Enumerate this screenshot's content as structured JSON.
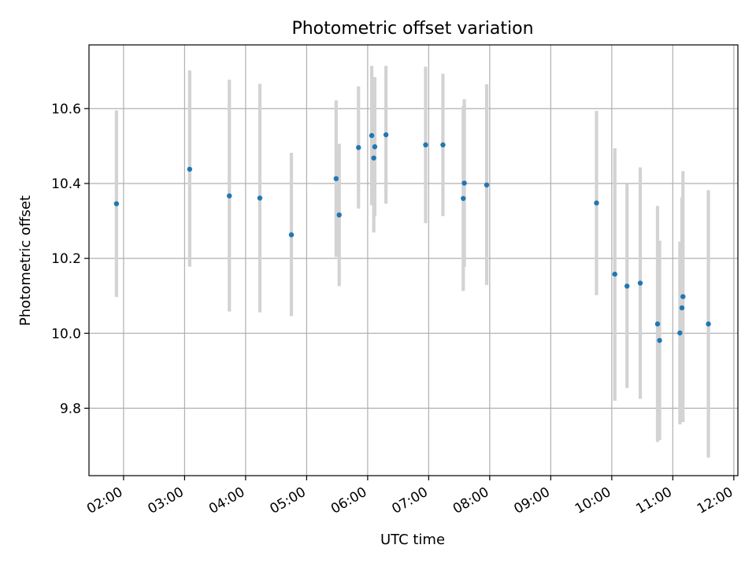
{
  "chart_data": {
    "type": "scatter",
    "title": "Photometric offset variation",
    "xlabel": "UTC time",
    "ylabel": "Photometric offset",
    "xlim": [
      "01:26",
      "12:04"
    ],
    "ylim": [
      9.62,
      10.77
    ],
    "x_ticks": [
      "02:00",
      "03:00",
      "04:00",
      "05:00",
      "06:00",
      "07:00",
      "08:00",
      "09:00",
      "10:00",
      "11:00",
      "12:00"
    ],
    "y_ticks": [
      9.8,
      10.0,
      10.2,
      10.4,
      10.6
    ],
    "y_tick_labels": [
      "9.8",
      "10.0",
      "10.2",
      "10.4",
      "10.6"
    ],
    "grid": true,
    "point_color": "#1f77b4",
    "errorbar_color": "#d3d3d3",
    "points": [
      {
        "t": "01:53",
        "y": 10.346,
        "lo": 10.097,
        "hi": 10.595
      },
      {
        "t": "03:05",
        "y": 10.438,
        "lo": 10.178,
        "hi": 10.702
      },
      {
        "t": "03:44",
        "y": 10.367,
        "lo": 10.058,
        "hi": 10.677
      },
      {
        "t": "04:14",
        "y": 10.361,
        "lo": 10.056,
        "hi": 10.666
      },
      {
        "t": "04:45",
        "y": 10.263,
        "lo": 10.046,
        "hi": 10.482
      },
      {
        "t": "05:29",
        "y": 10.413,
        "lo": 10.204,
        "hi": 10.622
      },
      {
        "t": "05:32",
        "y": 10.316,
        "lo": 10.126,
        "hi": 10.506
      },
      {
        "t": "05:51",
        "y": 10.496,
        "lo": 10.333,
        "hi": 10.659
      },
      {
        "t": "06:04",
        "y": 10.528,
        "lo": 10.342,
        "hi": 10.714
      },
      {
        "t": "06:06",
        "y": 10.468,
        "lo": 10.269,
        "hi": 10.667
      },
      {
        "t": "06:07",
        "y": 10.498,
        "lo": 10.312,
        "hi": 10.684
      },
      {
        "t": "06:18",
        "y": 10.53,
        "lo": 10.346,
        "hi": 10.714
      },
      {
        "t": "06:57",
        "y": 10.503,
        "lo": 10.294,
        "hi": 10.712
      },
      {
        "t": "07:14",
        "y": 10.503,
        "lo": 10.313,
        "hi": 10.693
      },
      {
        "t": "07:34",
        "y": 10.36,
        "lo": 10.113,
        "hi": 10.607
      },
      {
        "t": "07:35",
        "y": 10.401,
        "lo": 10.177,
        "hi": 10.625
      },
      {
        "t": "07:57",
        "y": 10.396,
        "lo": 10.129,
        "hi": 10.665
      },
      {
        "t": "09:45",
        "y": 10.348,
        "lo": 10.102,
        "hi": 10.594
      },
      {
        "t": "10:03",
        "y": 10.158,
        "lo": 9.82,
        "hi": 10.494
      },
      {
        "t": "10:15",
        "y": 10.126,
        "lo": 9.854,
        "hi": 10.398
      },
      {
        "t": "10:28",
        "y": 10.134,
        "lo": 9.825,
        "hi": 10.443
      },
      {
        "t": "10:45",
        "y": 10.025,
        "lo": 9.71,
        "hi": 10.34
      },
      {
        "t": "10:47",
        "y": 9.981,
        "lo": 9.715,
        "hi": 10.247
      },
      {
        "t": "11:07",
        "y": 10.001,
        "lo": 9.757,
        "hi": 10.245
      },
      {
        "t": "11:09",
        "y": 10.068,
        "lo": 9.763,
        "hi": 10.363
      },
      {
        "t": "11:10",
        "y": 10.098,
        "lo": 9.763,
        "hi": 10.433
      },
      {
        "t": "11:35",
        "y": 10.025,
        "lo": 9.668,
        "hi": 10.382
      }
    ]
  }
}
